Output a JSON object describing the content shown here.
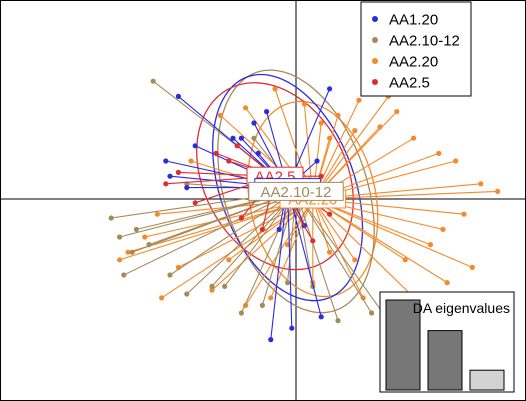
{
  "chart_data": {
    "type": "scatter",
    "title": "",
    "xlabel": "",
    "ylabel": "",
    "xlim": [
      -6,
      6
    ],
    "ylim": [
      -5,
      5
    ],
    "grid": false,
    "axes_lines_through_origin": true,
    "legend_placement": "top-right",
    "series": [
      {
        "name": "AA1.20",
        "color": "#2b2bdf",
        "centroid": [
          -0.2,
          0.3
        ],
        "ellipse": {
          "rx": 1.6,
          "ry": 3.1,
          "angle": -20
        },
        "x": [
          -2.8,
          -3.1,
          -3.0,
          -2.6,
          -0.7,
          -1.0,
          -1.3,
          -2.4,
          0.8,
          0.5,
          -0.9,
          -1.5,
          -0.4,
          0.2,
          0.6,
          -0.1,
          -0.6
        ],
        "y": [
          2.7,
          1.0,
          0.6,
          0.3,
          2.3,
          2.0,
          1.6,
          1.4,
          2.9,
          1.0,
          1.2,
          1.6,
          -0.8,
          -0.7,
          -3.1,
          -3.4,
          -3.7
        ]
      },
      {
        "name": "AA2.10-12",
        "color": "#a68b5a",
        "centroid": [
          0.0,
          0.2
        ],
        "ellipse": {
          "rx": 1.7,
          "ry": 3.3,
          "angle": -18
        },
        "x": [
          -4.4,
          -4.2,
          -3.9,
          -3.8,
          -3.5,
          -3.0,
          -2.6,
          -2.0,
          -1.7,
          -1.3,
          -0.8,
          -0.2,
          0.4,
          1.0,
          1.8,
          2.2,
          -1.0,
          -3.4,
          -2.6,
          -4.1
        ],
        "y": [
          -0.5,
          -1.0,
          -1.4,
          -0.8,
          -1.2,
          -2.0,
          -2.5,
          -2.3,
          -2.3,
          -3.0,
          -2.8,
          -2.2,
          -2.3,
          -3.2,
          -3.0,
          -3.2,
          1.6,
          3.1,
          0.4,
          -2.0
        ]
      },
      {
        "name": "AA2.20",
        "color": "#f58a2a",
        "centroid": [
          0.4,
          0.0
        ],
        "ellipse": {
          "rx": 1.5,
          "ry": 2.6,
          "angle": -12
        },
        "x": [
          0.6,
          1.0,
          1.4,
          0.8,
          0.2,
          -0.5,
          -1.2,
          -1.8,
          -2.5,
          -3.3,
          -3.6,
          -4.2,
          -2.8,
          -1.6,
          -0.6,
          0.4,
          1.6,
          2.6,
          3.2,
          3.6,
          4.0,
          4.4,
          3.8,
          3.4,
          2.8,
          2.0,
          1.5,
          3.5,
          4.2,
          4.8,
          -2.0,
          -1.2,
          -0.2,
          2.4,
          3.0,
          0.8,
          -3.2,
          -4.0,
          1.4,
          2.2
        ],
        "y": [
          2.0,
          2.2,
          1.8,
          1.6,
          2.5,
          2.9,
          2.4,
          2.2,
          1.0,
          -0.4,
          -1.0,
          -1.6,
          -1.8,
          -1.6,
          -2.6,
          -2.2,
          -2.6,
          -1.6,
          -1.2,
          -2.2,
          -0.4,
          0.4,
          1.0,
          1.2,
          1.6,
          1.9,
          2.6,
          -0.8,
          -1.8,
          0.2,
          -2.4,
          -2.8,
          -1.2,
          2.3,
          -2.8,
          -1.4,
          -2.6,
          -1.4,
          -1.6,
          2.7
        ]
      },
      {
        "name": "AA2.5",
        "color": "#e12a34",
        "centroid": [
          -0.5,
          0.6
        ],
        "ellipse": {
          "rx": 1.7,
          "ry": 2.6,
          "angle": -28
        },
        "x": [
          -1.9,
          -1.6,
          -1.4,
          -2.8,
          -3.1,
          -2.4,
          -1.3,
          0.3,
          0.6,
          0.8,
          -0.2,
          -0.8,
          0.4
        ],
        "y": [
          1.2,
          1.0,
          1.4,
          0.7,
          0.4,
          -0.1,
          -0.5,
          0.5,
          0.6,
          -0.4,
          -0.2,
          -0.8,
          -1.1
        ]
      }
    ],
    "group_labels": [
      {
        "text": "AA2.5",
        "series": 3
      },
      {
        "text": "AA1.20",
        "series": 0
      },
      {
        "text": "AA2.20",
        "series": 2
      },
      {
        "text": "AA2.10-12",
        "series": 1
      }
    ],
    "inset": {
      "title": "DA eigenvalues",
      "values": [
        1.0,
        0.66,
        0.22
      ],
      "colors": [
        "#777777",
        "#777777",
        "#d3d3d3"
      ]
    }
  }
}
